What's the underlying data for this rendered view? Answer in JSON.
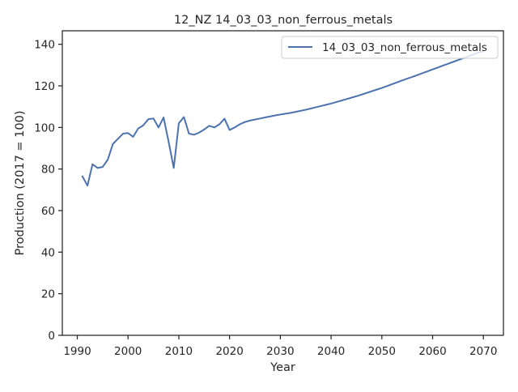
{
  "chart_data": {
    "type": "line",
    "title": "12_NZ 14_03_03_non_ferrous_metals",
    "xlabel": "Year",
    "ylabel": "Production (2017 = 100)",
    "xlim": [
      1987.05,
      2073.95
    ],
    "ylim": [
      0,
      146.5
    ],
    "xticks": [
      1990,
      2000,
      2010,
      2020,
      2030,
      2040,
      2050,
      2060,
      2070
    ],
    "yticks": [
      0,
      20,
      40,
      60,
      80,
      100,
      120,
      140
    ],
    "grid": false,
    "legend_position": "top-right",
    "series": [
      {
        "name": "14_03_03_non_ferrous_metals",
        "color": "#4c72b0",
        "x": [
          1991,
          1992,
          1993,
          1994,
          1995,
          1996,
          1997,
          1998,
          1999,
          2000,
          2001,
          2002,
          2003,
          2004,
          2005,
          2006,
          2007,
          2008,
          2009,
          2010,
          2011,
          2012,
          2013,
          2014,
          2015,
          2016,
          2017,
          2018,
          2019,
          2020,
          2021,
          2022,
          2023,
          2024,
          2025,
          2026,
          2027,
          2028,
          2029,
          2030,
          2031,
          2032,
          2033,
          2034,
          2035,
          2036,
          2037,
          2038,
          2039,
          2040,
          2041,
          2042,
          2043,
          2044,
          2045,
          2046,
          2047,
          2048,
          2049,
          2050,
          2051,
          2052,
          2053,
          2054,
          2055,
          2056,
          2057,
          2058,
          2059,
          2060,
          2061,
          2062,
          2063,
          2064,
          2065,
          2066,
          2067,
          2068,
          2069,
          2070
        ],
        "y": [
          76.5,
          72.0,
          82.3,
          80.5,
          81.0,
          84.5,
          92.0,
          94.5,
          97.0,
          97.3,
          95.5,
          99.5,
          101.0,
          104.0,
          104.3,
          100.0,
          104.8,
          93.0,
          80.5,
          102.0,
          105.0,
          97.0,
          96.5,
          97.5,
          99.0,
          100.8,
          100.0,
          101.5,
          104.2,
          98.8,
          100.0,
          101.5,
          102.6,
          103.3,
          103.8,
          104.3,
          104.8,
          105.3,
          105.8,
          106.2,
          106.6,
          107.0,
          107.5,
          108.0,
          108.5,
          109.1,
          109.7,
          110.3,
          110.9,
          111.5,
          112.2,
          112.9,
          113.6,
          114.3,
          115.0,
          115.8,
          116.6,
          117.4,
          118.2,
          119.0,
          119.9,
          120.8,
          121.7,
          122.6,
          123.5,
          124.3,
          125.2,
          126.1,
          127.0,
          127.9,
          128.8,
          129.7,
          130.6,
          131.5,
          132.4,
          133.3,
          134.2,
          135.1,
          136.0,
          136.6
        ]
      }
    ]
  }
}
